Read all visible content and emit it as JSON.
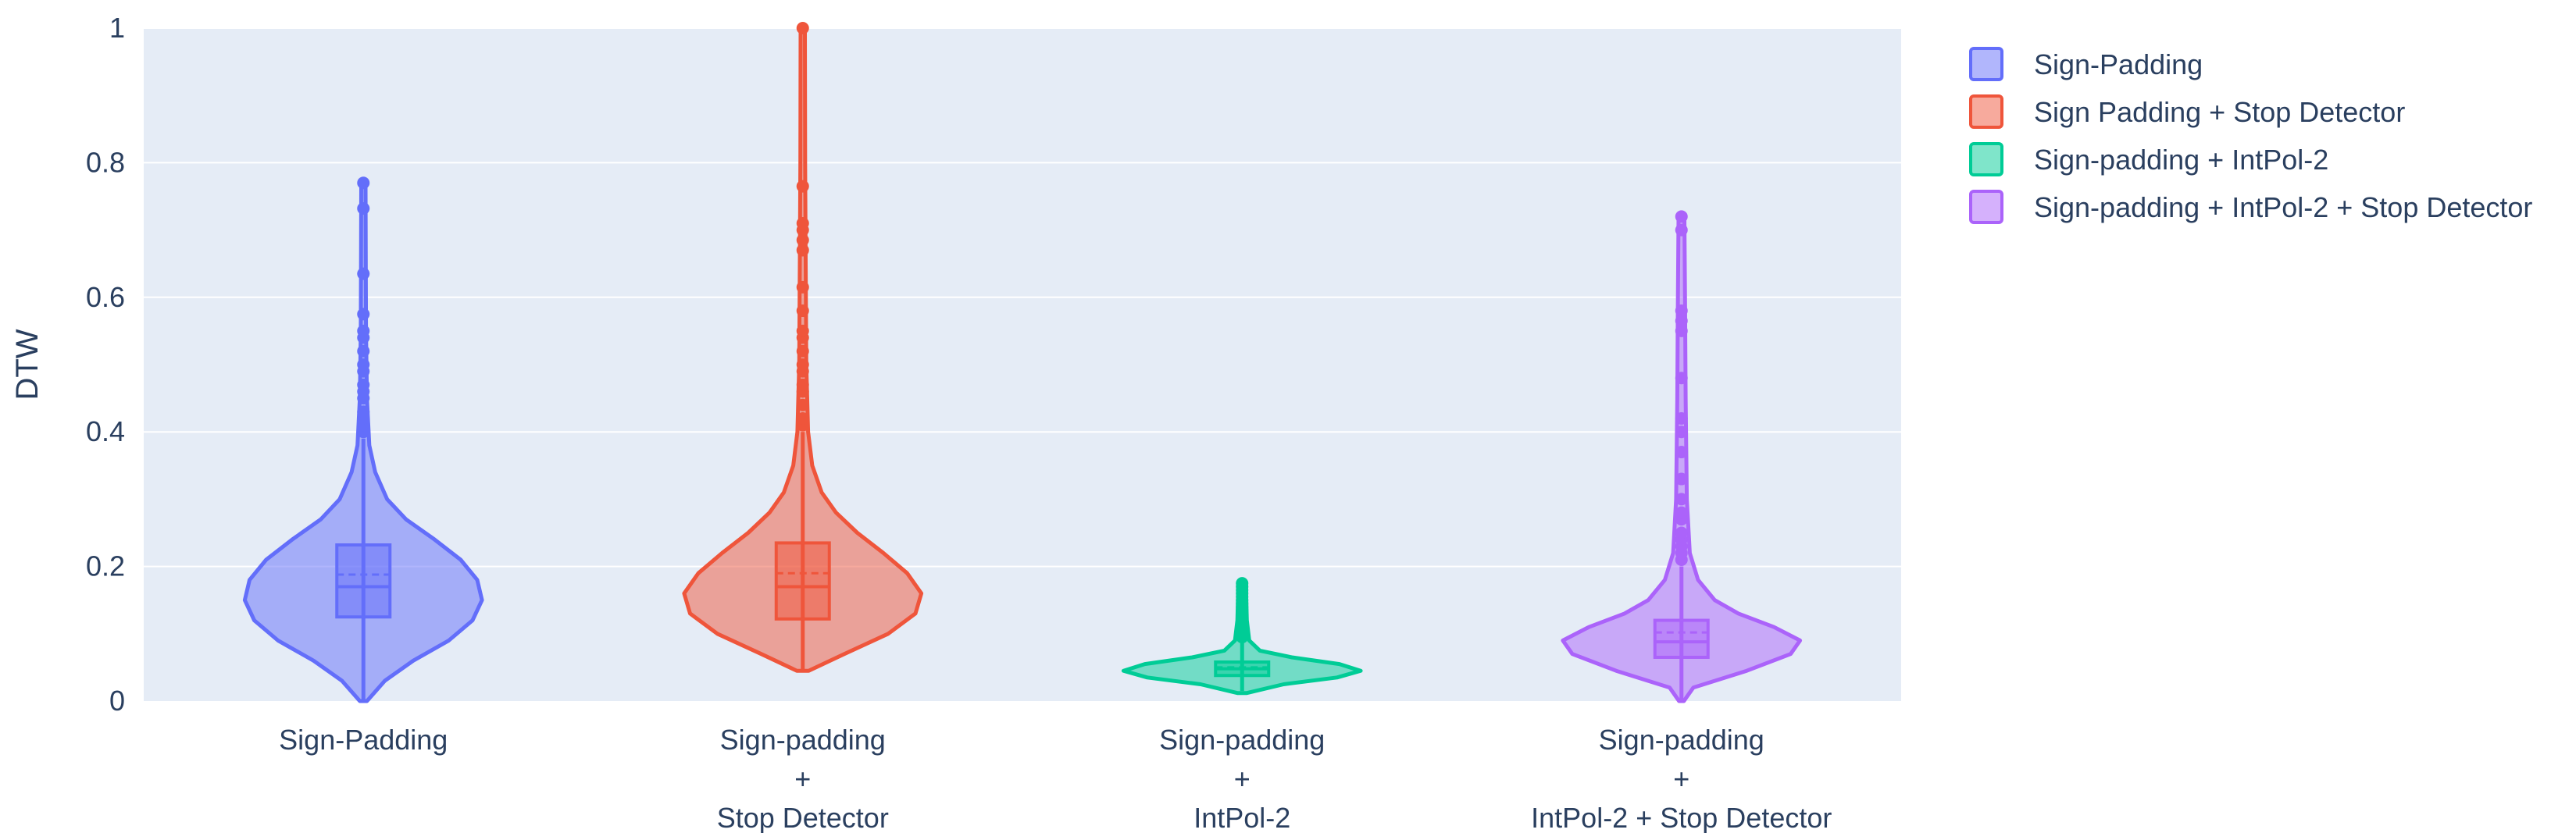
{
  "chart_data": {
    "type": "violin",
    "title": "",
    "xlabel": "",
    "ylabel": "DTW",
    "ylim": [
      0,
      1
    ],
    "yticks": [
      0,
      0.2,
      0.4,
      0.6,
      0.8,
      1
    ],
    "ytick_labels": [
      "0",
      "0.2",
      "0.4",
      "0.6",
      "0.8",
      "1"
    ],
    "grid": true,
    "legend_position": "top-right",
    "categories": [
      [
        "Sign-Padding"
      ],
      [
        "Sign-padding",
        "+",
        "Stop Detector"
      ],
      [
        "Sign-padding",
        "+",
        "IntPol-2"
      ],
      [
        "Sign-padding",
        "+",
        "IntPol-2 + Stop Detector"
      ]
    ],
    "series": [
      {
        "name": "Sign-Padding",
        "color": "#636efa",
        "min": 0.0,
        "q1": 0.125,
        "median": 0.17,
        "mean": 0.188,
        "q3": 0.232,
        "upper_fence": 0.39,
        "outliers": [
          0.4,
          0.41,
          0.42,
          0.43,
          0.45,
          0.46,
          0.47,
          0.49,
          0.5,
          0.52,
          0.54,
          0.55,
          0.575,
          0.635,
          0.732,
          0.77
        ],
        "density": [
          [
            0.0,
            0.03
          ],
          [
            0.03,
            0.18
          ],
          [
            0.06,
            0.42
          ],
          [
            0.09,
            0.72
          ],
          [
            0.12,
            0.92
          ],
          [
            0.15,
            1.0
          ],
          [
            0.18,
            0.96
          ],
          [
            0.21,
            0.82
          ],
          [
            0.24,
            0.6
          ],
          [
            0.27,
            0.36
          ],
          [
            0.3,
            0.2
          ],
          [
            0.34,
            0.1
          ],
          [
            0.38,
            0.05
          ],
          [
            0.45,
            0.03
          ],
          [
            0.55,
            0.022
          ],
          [
            0.65,
            0.02
          ],
          [
            0.77,
            0.018
          ]
        ]
      },
      {
        "name": "Sign Padding + Stop Detector",
        "color": "#ef553b",
        "min": 0.045,
        "q1": 0.122,
        "median": 0.17,
        "mean": 0.19,
        "q3": 0.235,
        "upper_fence": 0.4,
        "outliers": [
          0.41,
          0.42,
          0.44,
          0.46,
          0.47,
          0.49,
          0.5,
          0.52,
          0.54,
          0.55,
          0.58,
          0.615,
          0.67,
          0.685,
          0.7,
          0.71,
          0.765,
          1.0
        ],
        "density": [
          [
            0.045,
            0.05
          ],
          [
            0.07,
            0.35
          ],
          [
            0.1,
            0.72
          ],
          [
            0.13,
            0.95
          ],
          [
            0.16,
            1.0
          ],
          [
            0.19,
            0.88
          ],
          [
            0.22,
            0.68
          ],
          [
            0.25,
            0.46
          ],
          [
            0.28,
            0.28
          ],
          [
            0.31,
            0.16
          ],
          [
            0.35,
            0.08
          ],
          [
            0.4,
            0.045
          ],
          [
            0.5,
            0.03
          ],
          [
            0.65,
            0.025
          ],
          [
            0.8,
            0.02
          ],
          [
            1.0,
            0.018
          ]
        ]
      },
      {
        "name": "Sign-padding + IntPol-2",
        "color": "#00cc96",
        "min": 0.015,
        "q1": 0.038,
        "median": 0.048,
        "mean": 0.05,
        "q3": 0.058,
        "upper_fence": 0.09,
        "outliers": [
          0.095,
          0.1,
          0.105,
          0.11,
          0.115,
          0.12,
          0.125,
          0.13,
          0.135,
          0.14,
          0.145,
          0.15,
          0.155,
          0.16,
          0.165,
          0.17,
          0.175
        ],
        "density": [
          [
            0.012,
            0.04
          ],
          [
            0.025,
            0.35
          ],
          [
            0.035,
            0.8
          ],
          [
            0.045,
            1.0
          ],
          [
            0.055,
            0.82
          ],
          [
            0.065,
            0.42
          ],
          [
            0.075,
            0.15
          ],
          [
            0.09,
            0.06
          ],
          [
            0.12,
            0.04
          ],
          [
            0.15,
            0.035
          ],
          [
            0.178,
            0.03
          ]
        ]
      },
      {
        "name": "Sign-padding + IntPol-2 + Stop Detector",
        "color": "#ab63fa",
        "min": 0.0,
        "q1": 0.065,
        "median": 0.088,
        "mean": 0.102,
        "q3": 0.12,
        "upper_fence": 0.2,
        "outliers": [
          0.21,
          0.22,
          0.23,
          0.24,
          0.25,
          0.27,
          0.28,
          0.3,
          0.33,
          0.37,
          0.4,
          0.42,
          0.48,
          0.55,
          0.565,
          0.58,
          0.7,
          0.72
        ],
        "density": [
          [
            0.0,
            0.02
          ],
          [
            0.02,
            0.1
          ],
          [
            0.045,
            0.55
          ],
          [
            0.07,
            0.92
          ],
          [
            0.09,
            1.0
          ],
          [
            0.11,
            0.78
          ],
          [
            0.13,
            0.48
          ],
          [
            0.15,
            0.28
          ],
          [
            0.18,
            0.14
          ],
          [
            0.22,
            0.07
          ],
          [
            0.3,
            0.045
          ],
          [
            0.45,
            0.035
          ],
          [
            0.6,
            0.03
          ],
          [
            0.72,
            0.025
          ]
        ]
      }
    ]
  }
}
